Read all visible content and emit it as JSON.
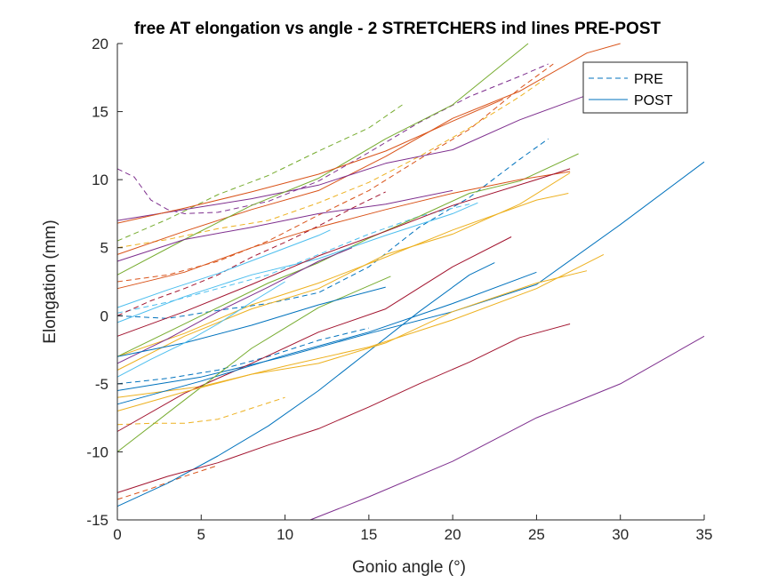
{
  "chart_data": {
    "type": "line",
    "title": "free AT elongation vs angle - 2 STRETCHERS ind lines PRE-POST",
    "xlabel": "Gonio angle (°)",
    "ylabel": "Elongation (mm)",
    "xlim": [
      0,
      35
    ],
    "ylim": [
      -15,
      20
    ],
    "xticks": [
      "0",
      "5",
      "10",
      "15",
      "20",
      "25",
      "30",
      "35"
    ],
    "yticks": [
      "-15",
      "-10",
      "-5",
      "0",
      "5",
      "10",
      "15",
      "20"
    ],
    "grid": false,
    "legend": {
      "placement": "top-right",
      "entries": [
        {
          "label": "PRE",
          "style": "dashed",
          "color": "#0072BD"
        },
        {
          "label": "POST",
          "style": "solid",
          "color": "#0072BD"
        }
      ]
    },
    "series": [
      {
        "style": "dashed",
        "color": "#0072BD",
        "x": [
          0,
          3,
          6,
          9,
          12,
          15,
          18,
          21,
          24,
          25.7
        ],
        "y": [
          0.0,
          -0.2,
          0.4,
          0.9,
          1.7,
          3.6,
          6.5,
          8.7,
          11.5,
          13.0
        ]
      },
      {
        "style": "dashed",
        "color": "#D95319",
        "x": [
          0,
          3,
          6,
          9,
          12,
          15,
          18,
          21,
          24,
          26
        ],
        "y": [
          2.5,
          3.0,
          4.0,
          5.5,
          7.4,
          9.2,
          11.5,
          13.7,
          16.7,
          18.5
        ]
      },
      {
        "style": "dashed",
        "color": "#EDB120",
        "x": [
          0,
          3,
          6,
          9,
          12,
          15,
          18,
          21,
          24,
          25.5
        ],
        "y": [
          5.0,
          5.6,
          6.4,
          7.0,
          8.3,
          9.8,
          11.7,
          13.8,
          16.1,
          17.4
        ]
      },
      {
        "style": "dashed",
        "color": "#7E2F8E",
        "x": [
          0,
          1,
          2,
          3,
          4,
          6,
          9,
          12,
          15,
          18,
          21,
          24,
          25.7
        ],
        "y": [
          10.8,
          10.2,
          8.5,
          7.8,
          7.5,
          7.6,
          8.4,
          9.9,
          12.0,
          14.2,
          16.1,
          17.6,
          18.5
        ]
      },
      {
        "style": "dashed",
        "color": "#77AC30",
        "x": [
          0,
          3,
          6,
          9,
          12,
          15,
          17
        ],
        "y": [
          5.5,
          7.1,
          8.9,
          10.3,
          12.1,
          13.8,
          15.5
        ]
      },
      {
        "style": "dashed",
        "color": "#4DBEEE",
        "x": [
          0,
          3,
          6,
          9,
          12,
          15,
          18,
          21
        ],
        "y": [
          0.2,
          1.0,
          2.0,
          3.0,
          4.5,
          6.0,
          7.3,
          8.2
        ]
      },
      {
        "style": "dashed",
        "color": "#A2142F",
        "x": [
          0,
          2,
          4,
          6,
          8,
          10,
          12,
          14,
          16
        ],
        "y": [
          0.0,
          1.1,
          2.0,
          3.0,
          4.3,
          5.4,
          6.6,
          7.9,
          9.1
        ]
      },
      {
        "style": "dashed",
        "color": "#EDB120",
        "x": [
          0,
          2,
          4,
          6,
          8,
          10
        ],
        "y": [
          -8.0,
          -7.9,
          -7.9,
          -7.6,
          -6.8,
          -6.0
        ]
      },
      {
        "style": "dashed",
        "color": "#0072BD",
        "x": [
          0,
          3,
          6,
          9,
          12,
          15
        ],
        "y": [
          -5.0,
          -4.6,
          -4.0,
          -3.0,
          -1.8,
          -0.9
        ]
      },
      {
        "style": "dashed",
        "color": "#D95319",
        "x": [
          0,
          2,
          4,
          6
        ],
        "y": [
          -13.5,
          -12.7,
          -11.8,
          -11.0
        ]
      },
      {
        "style": "solid",
        "color": "#0072BD",
        "x": [
          0,
          3,
          6,
          9,
          12,
          15,
          18,
          21,
          22.5
        ],
        "y": [
          -14.0,
          -12.3,
          -10.3,
          -8.1,
          -5.5,
          -2.6,
          0.3,
          3.0,
          3.9
        ]
      },
      {
        "style": "solid",
        "color": "#D95319",
        "x": [
          0,
          4,
          8,
          12,
          16,
          20,
          24,
          28,
          30
        ],
        "y": [
          4.5,
          6.2,
          7.8,
          9.2,
          11.7,
          14.5,
          16.5,
          19.3,
          20.0
        ]
      },
      {
        "style": "solid",
        "color": "#EDB120",
        "x": [
          0,
          4,
          8,
          12,
          16,
          20,
          24,
          27
        ],
        "y": [
          -4.0,
          -1.5,
          0.5,
          2.0,
          4.5,
          6.0,
          8.2,
          10.5
        ]
      },
      {
        "style": "solid",
        "color": "#7E2F8E",
        "x": [
          0,
          4,
          8,
          12,
          16,
          20,
          24,
          28,
          29
        ],
        "y": [
          7.0,
          7.8,
          8.6,
          9.6,
          11.2,
          12.2,
          14.4,
          16.2,
          16.8
        ]
      },
      {
        "style": "solid",
        "color": "#77AC30",
        "x": [
          0,
          3,
          6,
          9,
          12,
          15,
          18,
          21,
          24,
          27.5
        ],
        "y": [
          -3.0,
          -1.2,
          0.6,
          2.4,
          3.9,
          5.7,
          7.3,
          9.0,
          9.9,
          11.9
        ]
      },
      {
        "style": "solid",
        "color": "#4DBEEE",
        "x": [
          0,
          3,
          6,
          9,
          12,
          12.7
        ],
        "y": [
          0.6,
          1.9,
          3.1,
          4.5,
          5.9,
          6.3
        ]
      },
      {
        "style": "solid",
        "color": "#A2142F",
        "x": [
          0,
          3,
          6,
          9,
          12,
          15,
          18,
          21,
          24,
          27
        ],
        "y": [
          -13.0,
          -11.8,
          -10.8,
          -9.5,
          -8.3,
          -6.7,
          -5.0,
          -3.4,
          -1.6,
          -0.6
        ]
      },
      {
        "style": "solid",
        "color": "#0072BD",
        "x": [
          0,
          5,
          10,
          15,
          20,
          25,
          30,
          35
        ],
        "y": [
          -5.5,
          -4.5,
          -3.0,
          -1.3,
          0.3,
          2.3,
          6.7,
          11.3
        ]
      },
      {
        "style": "solid",
        "color": "#D95319",
        "x": [
          0,
          4,
          8,
          12,
          16,
          20,
          24,
          27
        ],
        "y": [
          2.0,
          3.2,
          5.0,
          6.5,
          7.8,
          9.0,
          10.0,
          10.6
        ]
      },
      {
        "style": "solid",
        "color": "#EDB120",
        "x": [
          0,
          5,
          10,
          15,
          20,
          25,
          29
        ],
        "y": [
          -6.0,
          -5.2,
          -3.7,
          -2.3,
          -0.3,
          2.0,
          4.5
        ]
      },
      {
        "style": "solid",
        "color": "#7E2F8E",
        "x": [
          11.5,
          15,
          20,
          25,
          30,
          35
        ],
        "y": [
          -15.0,
          -13.3,
          -10.7,
          -7.5,
          -5.0,
          -1.5
        ]
      },
      {
        "style": "solid",
        "color": "#77AC30",
        "x": [
          0,
          4,
          8,
          12,
          16,
          20,
          24.5
        ],
        "y": [
          3.0,
          5.6,
          8.1,
          10.1,
          13.0,
          15.5,
          20.0
        ]
      },
      {
        "style": "solid",
        "color": "#4DBEEE",
        "x": [
          0,
          4,
          8,
          12,
          16,
          20,
          21.5
        ],
        "y": [
          -0.5,
          1.4,
          3.0,
          4.2,
          5.9,
          7.5,
          8.3
        ]
      },
      {
        "style": "solid",
        "color": "#A2142F",
        "x": [
          0,
          4,
          8,
          12,
          16,
          20,
          23.5
        ],
        "y": [
          -8.5,
          -5.7,
          -3.5,
          -1.2,
          0.5,
          3.6,
          5.8
        ]
      },
      {
        "style": "solid",
        "color": "#0072BD",
        "x": [
          0,
          5,
          10,
          15,
          20,
          25
        ],
        "y": [
          -6.5,
          -4.8,
          -2.9,
          -1.2,
          0.9,
          3.2
        ]
      },
      {
        "style": "solid",
        "color": "#D95319",
        "x": [
          0,
          4,
          8,
          12,
          16,
          20,
          23
        ],
        "y": [
          6.8,
          7.9,
          9.1,
          10.4,
          12.1,
          14.3,
          15.9
        ]
      },
      {
        "style": "solid",
        "color": "#EDB120",
        "x": [
          0,
          4,
          8,
          12,
          16,
          20,
          25,
          26.9
        ],
        "y": [
          -3.0,
          -1.3,
          0.8,
          2.4,
          4.3,
          6.3,
          8.5,
          9.0
        ]
      },
      {
        "style": "solid",
        "color": "#7E2F8E",
        "x": [
          0,
          4,
          8,
          12,
          16,
          20
        ],
        "y": [
          4.0,
          5.6,
          6.5,
          7.5,
          8.2,
          9.2
        ]
      },
      {
        "style": "solid",
        "color": "#77AC30",
        "x": [
          0,
          4,
          8,
          12,
          16.3
        ],
        "y": [
          -10.0,
          -6.2,
          -2.4,
          0.6,
          2.9
        ]
      },
      {
        "style": "solid",
        "color": "#A2142F",
        "x": [
          0,
          4,
          8,
          12,
          16,
          20,
          25,
          27
        ],
        "y": [
          -1.5,
          0.3,
          2.3,
          4.4,
          6.2,
          8.1,
          10.0,
          10.8
        ]
      },
      {
        "style": "solid",
        "color": "#EDB120",
        "x": [
          0,
          4,
          8,
          12,
          16,
          20,
          25,
          28
        ],
        "y": [
          -7.0,
          -5.6,
          -4.3,
          -3.5,
          -2.0,
          0.3,
          2.4,
          3.3
        ]
      },
      {
        "style": "solid",
        "color": "#7E2F8E",
        "x": [
          0,
          3,
          6,
          9,
          12,
          14
        ],
        "y": [
          -3.5,
          -1.7,
          0.3,
          2.1,
          4.0,
          5.0
        ]
      },
      {
        "style": "solid",
        "color": "#0072BD",
        "x": [
          0,
          4,
          8,
          12,
          16
        ],
        "y": [
          -3.0,
          -2.0,
          -0.7,
          0.8,
          2.1
        ]
      },
      {
        "style": "solid",
        "color": "#4DBEEE",
        "x": [
          0,
          2,
          4,
          6,
          8,
          10
        ],
        "y": [
          -4.5,
          -3.2,
          -2.0,
          -0.6,
          1.0,
          2.5
        ]
      }
    ]
  }
}
